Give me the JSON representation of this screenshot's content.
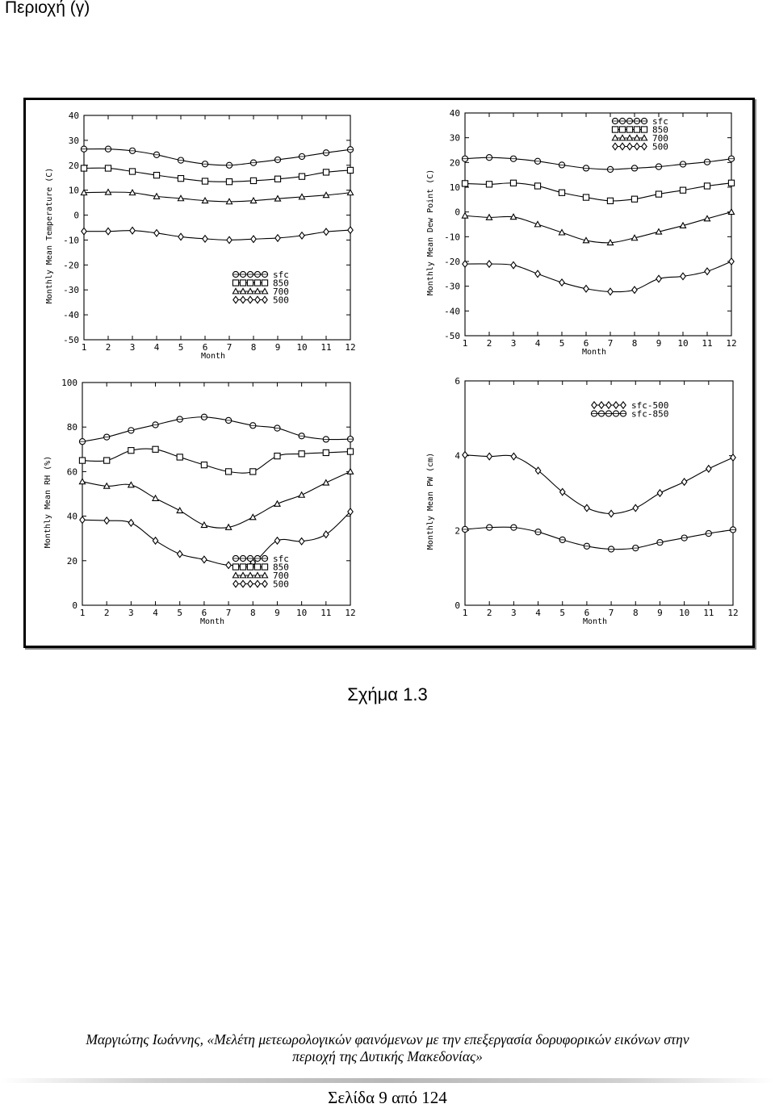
{
  "header": {
    "text": "Περιοχή (γ)"
  },
  "caption": {
    "text": "Σχήμα 1.3"
  },
  "footer": {
    "line1": "Μαργιώτης Ιωάννης, «Μελέτη μετεωρολογικών φαινόμενων με την επεξεργασία δορυφορικών εικόνων στην",
    "line2": "περιοχή της Δυτικής Μακεδονίας»",
    "page": "Σελίδα 9 από 124"
  },
  "chart_data": [
    {
      "type": "line",
      "xlabel": "Month",
      "ylabel": "Monthly Mean Temperature (C)",
      "x": [
        1,
        2,
        3,
        4,
        5,
        6,
        7,
        8,
        9,
        10,
        11,
        12
      ],
      "ylim": [
        -50,
        40
      ],
      "yticks": [
        40,
        30,
        20,
        10,
        0,
        -10,
        -20,
        -30,
        -40,
        -50
      ],
      "legend_position": "lower-right",
      "series": [
        {
          "name": "sfc",
          "marker": "circle",
          "values": [
            26.5,
            26.5,
            25.8,
            24.2,
            22,
            20.5,
            20,
            21,
            22.2,
            23.5,
            25,
            26.3
          ]
        },
        {
          "name": "850",
          "marker": "square",
          "values": [
            18.8,
            18.8,
            17.5,
            16,
            14.7,
            13.6,
            13.4,
            13.8,
            14.5,
            15.5,
            17.2,
            18
          ]
        },
        {
          "name": "700",
          "marker": "triangle",
          "values": [
            9,
            9.2,
            9,
            7.5,
            6.7,
            5.8,
            5.4,
            5.8,
            6.6,
            7.3,
            8,
            9
          ]
        },
        {
          "name": "500",
          "marker": "diamond",
          "values": [
            -6.5,
            -6.5,
            -6.2,
            -7.2,
            -8.7,
            -9.5,
            -10,
            -9.6,
            -9.2,
            -8.2,
            -6.7,
            -6
          ]
        }
      ]
    },
    {
      "type": "line",
      "xlabel": "Month",
      "ylabel": "Monthly Mean Dew Point (C)",
      "x": [
        1,
        2,
        3,
        4,
        5,
        6,
        7,
        8,
        9,
        10,
        11,
        12
      ],
      "ylim": [
        -50,
        40
      ],
      "yticks": [
        40,
        30,
        20,
        10,
        0,
        -10,
        -20,
        -30,
        -40,
        -50
      ],
      "legend_position": "top-right",
      "series": [
        {
          "name": "sfc",
          "marker": "circle",
          "values": [
            21.5,
            22,
            21.5,
            20.5,
            19,
            17.7,
            17.2,
            17.7,
            18.3,
            19.3,
            20.2,
            21.5
          ]
        },
        {
          "name": "850",
          "marker": "square",
          "values": [
            11.5,
            11.2,
            11.7,
            10.5,
            7.8,
            5.9,
            4.5,
            5.2,
            7.2,
            8.8,
            10.5,
            11.7
          ]
        },
        {
          "name": "700",
          "marker": "triangle",
          "values": [
            -1.5,
            -2.2,
            -2,
            -5,
            -8.3,
            -11.5,
            -12.4,
            -10.5,
            -8,
            -5.5,
            -2.7,
            0
          ]
        },
        {
          "name": "500",
          "marker": "diamond",
          "values": [
            -21,
            -21,
            -21.5,
            -25,
            -28.5,
            -31,
            -32.2,
            -31.5,
            -27,
            -26,
            -24,
            -20
          ]
        }
      ]
    },
    {
      "type": "line",
      "xlabel": "Month",
      "ylabel": "Monthly Mean RH (%)",
      "x": [
        1,
        2,
        3,
        4,
        5,
        6,
        7,
        8,
        9,
        10,
        11,
        12
      ],
      "ylim": [
        0,
        100
      ],
      "yticks": [
        100,
        80,
        60,
        40,
        20,
        0
      ],
      "legend_position": "lower-right",
      "series": [
        {
          "name": "sfc",
          "marker": "circle",
          "values": [
            73.5,
            75.5,
            78.5,
            81,
            83.5,
            84.5,
            83,
            80.7,
            79.5,
            76,
            74.5,
            74.6
          ]
        },
        {
          "name": "850",
          "marker": "square",
          "values": [
            65,
            65,
            69.5,
            70,
            66.5,
            63,
            60,
            60,
            67,
            68,
            68.5,
            69
          ]
        },
        {
          "name": "700",
          "marker": "triangle",
          "values": [
            55.5,
            53.5,
            54,
            48,
            42.5,
            36,
            35,
            39.5,
            45.5,
            49.5,
            55,
            60
          ]
        },
        {
          "name": "500",
          "marker": "diamond",
          "values": [
            38.3,
            38,
            37,
            29,
            23,
            20.5,
            18,
            19.2,
            29,
            28.7,
            31.8,
            42
          ]
        }
      ]
    },
    {
      "type": "line",
      "xlabel": "Month",
      "ylabel": "Monthly Mean PW (cm)",
      "x": [
        1,
        2,
        3,
        4,
        5,
        6,
        7,
        8,
        9,
        10,
        11,
        12
      ],
      "ylim": [
        0,
        6
      ],
      "yticks": [
        6,
        4,
        2,
        0
      ],
      "legend_position": "top-right",
      "series": [
        {
          "name": "sfc-500",
          "marker": "diamond",
          "values": [
            4.02,
            3.98,
            3.98,
            3.6,
            3.03,
            2.6,
            2.45,
            2.6,
            3,
            3.3,
            3.65,
            3.95
          ]
        },
        {
          "name": "sfc-850",
          "marker": "circle",
          "values": [
            2.03,
            2.08,
            2.08,
            1.96,
            1.75,
            1.58,
            1.5,
            1.53,
            1.68,
            1.8,
            1.92,
            2.02
          ]
        }
      ]
    }
  ]
}
